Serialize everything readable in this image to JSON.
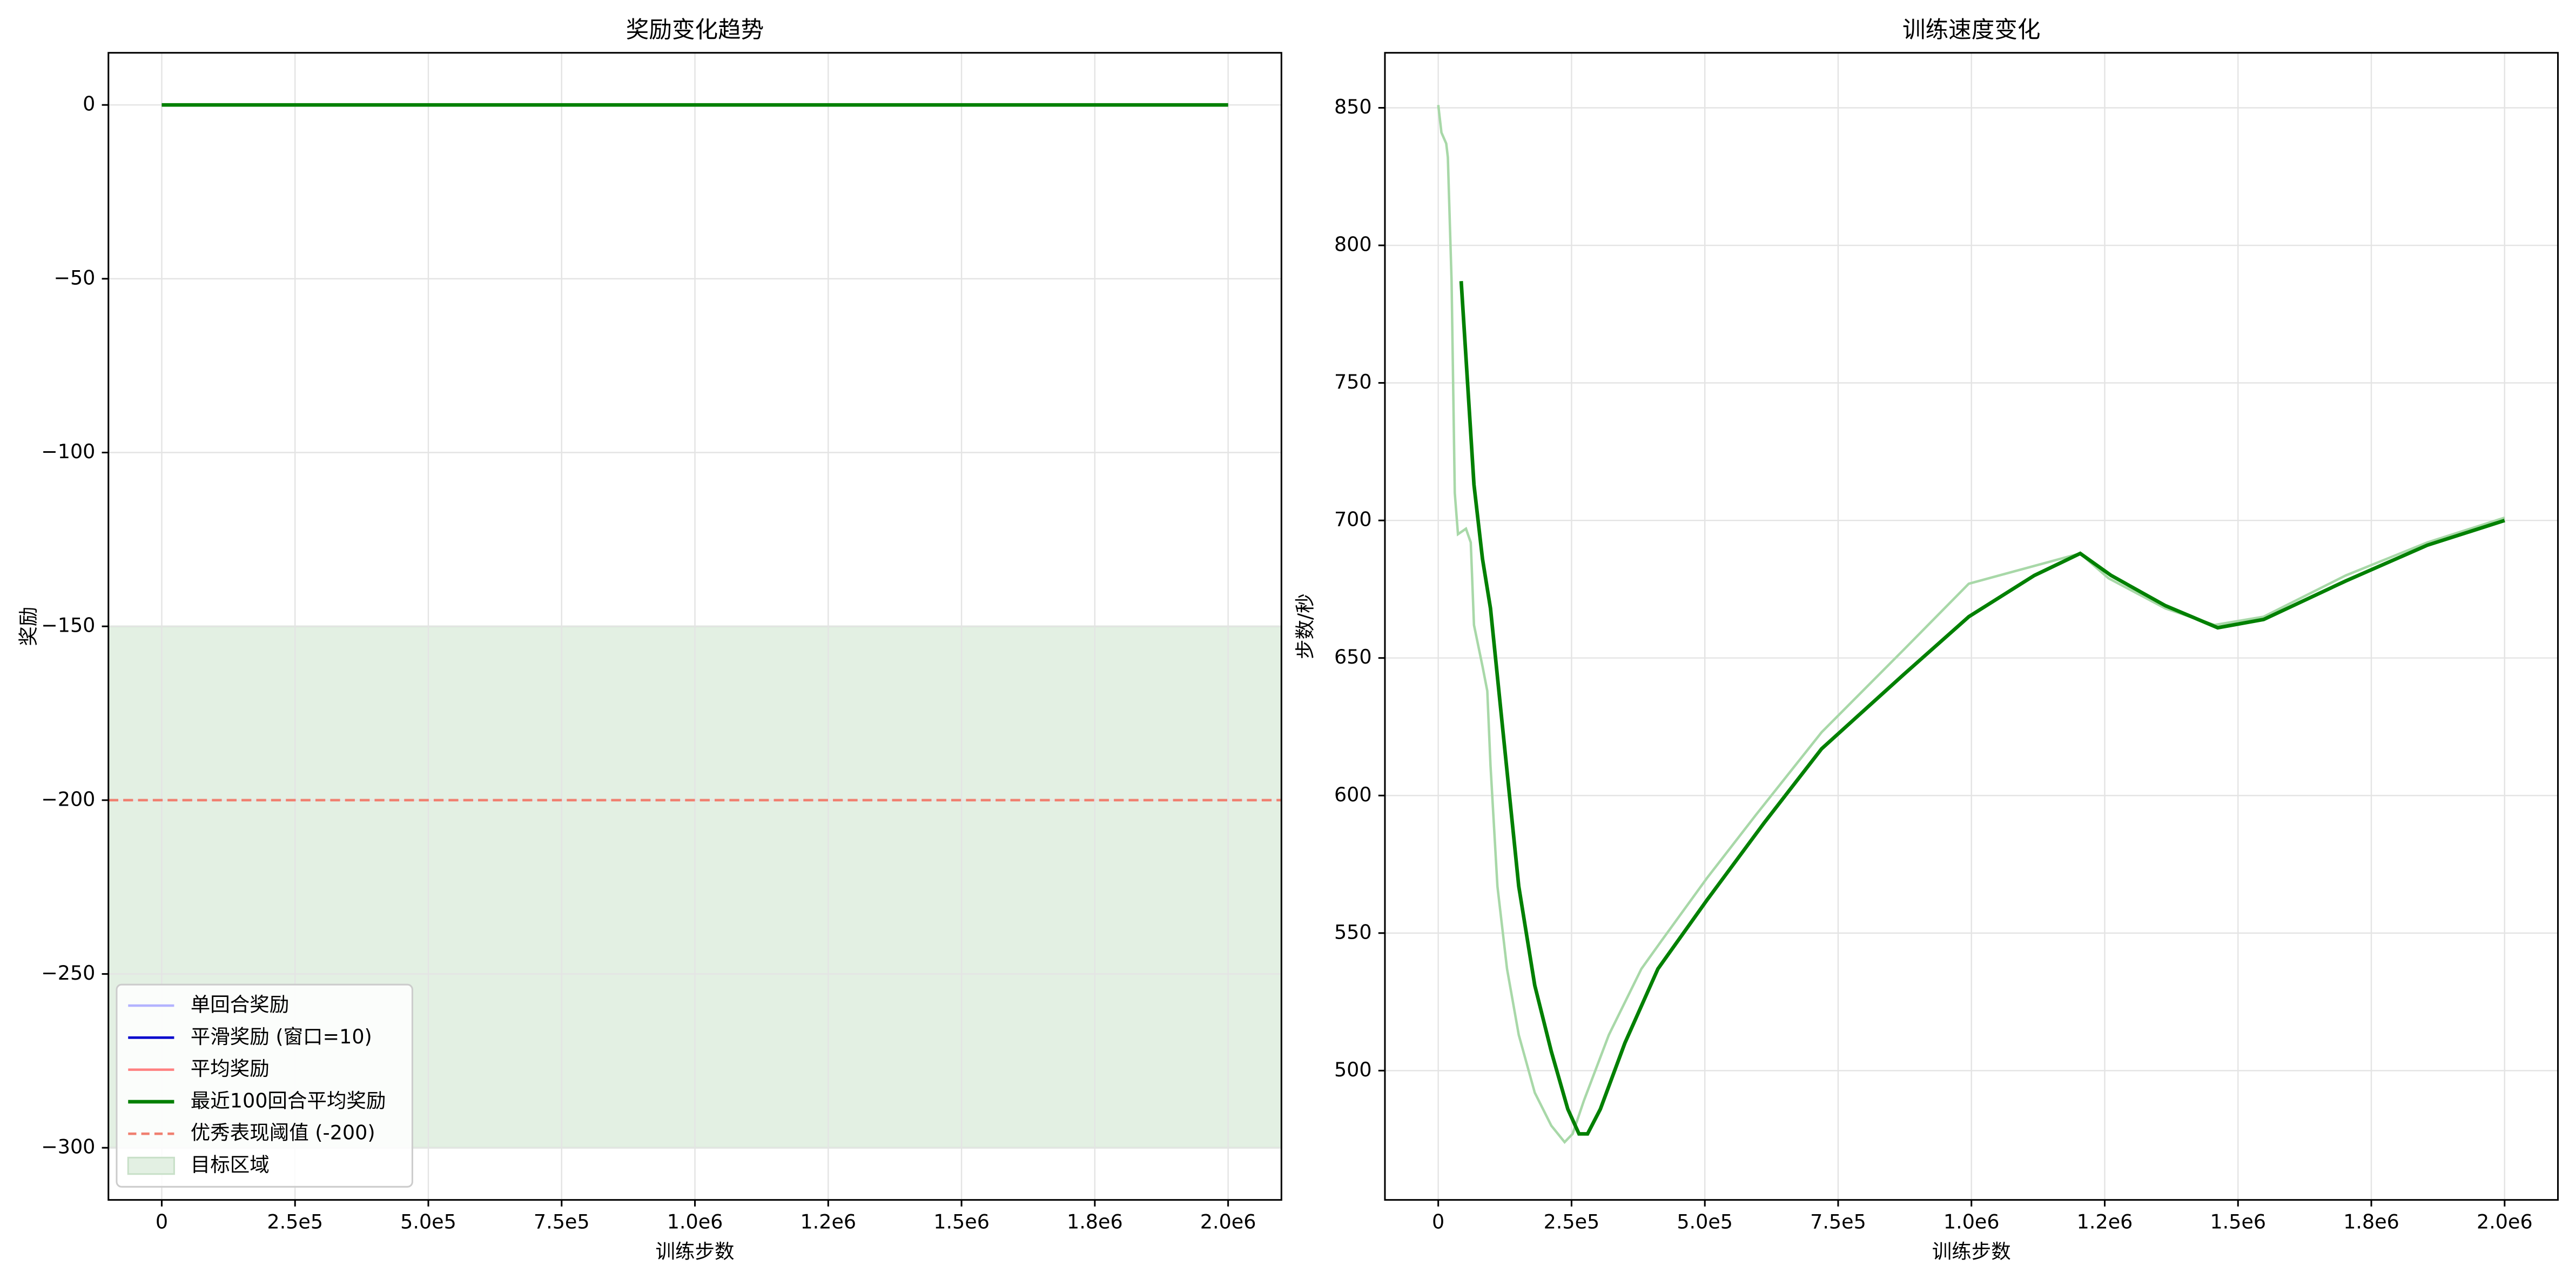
{
  "chart_data": [
    {
      "type": "line",
      "title": "奖励变化趋势",
      "xlabel": "训练步数",
      "ylabel": "奖励",
      "xlim": [
        -100000,
        2100000
      ],
      "ylim": [
        -315,
        15
      ],
      "grid": true,
      "legend": "lower left",
      "xticks": [
        0,
        {
          "value": 250000,
          "label": "2.5e5"
        },
        {
          "value": 500000,
          "label": "5.0e5"
        },
        {
          "value": 750000,
          "label": "7.5e5"
        },
        {
          "value": 1000000,
          "label": "1.0e6"
        },
        {
          "value": 1250000,
          "label": "1.2e6"
        },
        {
          "value": 1500000,
          "label": "1.5e6"
        },
        {
          "value": 1750000,
          "label": "1.8e6"
        },
        {
          "value": 2000000,
          "label": "2.0e6"
        }
      ],
      "yticks": [
        0,
        {
          "value": -50,
          "label": "−50"
        },
        {
          "value": -100,
          "label": "−100"
        },
        {
          "value": -150,
          "label": "−150"
        },
        {
          "value": -200,
          "label": "−200"
        },
        {
          "value": -250,
          "label": "−250"
        },
        {
          "value": -300,
          "label": "−300"
        }
      ],
      "x": [
        0,
        2000000
      ],
      "series": [
        {
          "name": "单回合奖励",
          "color": "#b3b3ff",
          "values": [
            0,
            0
          ]
        },
        {
          "name": "平滑奖励 (窗口=10)",
          "color": "#0000cc",
          "values": [
            0,
            0
          ]
        },
        {
          "name": "平均奖励",
          "color": "#ff8080",
          "values": [
            0,
            0
          ]
        },
        {
          "name": "最近100回合平均奖励",
          "color": "#008000",
          "values": [
            0,
            0
          ]
        }
      ],
      "threshold": {
        "name": "优秀表现阈值 (-200)",
        "value": -200,
        "color": "#f08070"
      },
      "target_region": {
        "name": "目标区域",
        "range": [
          -300,
          -150
        ],
        "color": "#e3f0e3"
      }
    },
    {
      "type": "line",
      "title": "训练速度变化",
      "xlabel": "训练步数",
      "ylabel": "步数/秒",
      "xlim": [
        -100000,
        2100000
      ],
      "ylim": [
        453,
        870
      ],
      "grid": true,
      "xticks": [
        0,
        {
          "value": 250000,
          "label": "2.5e5"
        },
        {
          "value": 500000,
          "label": "5.0e5"
        },
        {
          "value": 750000,
          "label": "7.5e5"
        },
        {
          "value": 1000000,
          "label": "1.0e6"
        },
        {
          "value": 1250000,
          "label": "1.2e6"
        },
        {
          "value": 1500000,
          "label": "1.5e6"
        },
        {
          "value": 1750000,
          "label": "1.8e6"
        },
        {
          "value": 2000000,
          "label": "2.0e6"
        }
      ],
      "yticks": [
        500,
        550,
        600,
        650,
        700,
        750,
        800,
        850
      ],
      "series": [
        {
          "color": "#a8d8a8",
          "x": [
            0,
            6000,
            15000,
            18000,
            25000,
            31000,
            37000,
            52000,
            61000,
            67000,
            83000,
            92000,
            98000,
            111000,
            129000,
            151000,
            181000,
            212000,
            237000,
            252000,
            273000,
            320000,
            381000,
            418000,
            504000,
            596000,
            719000,
            873000,
            995000,
            1204000,
            1257000,
            1364000,
            1456000,
            1548000,
            1702000,
            1855000,
            2000000
          ],
          "values": [
            851,
            841,
            837,
            832,
            787,
            710,
            695,
            697,
            692,
            662,
            647,
            638,
            611,
            567,
            537,
            513,
            492,
            480,
            474,
            477,
            489,
            513,
            537,
            547,
            570,
            593,
            623,
            653,
            677,
            688,
            679,
            668,
            662,
            665,
            680,
            692,
            701
          ]
        },
        {
          "color": "#008000",
          "x": [
            43000,
            67000,
            83000,
            98000,
            120000,
            151000,
            181000,
            212000,
            243000,
            264000,
            280000,
            304000,
            350000,
            412000,
            504000,
            611000,
            719000,
            873000,
            995000,
            1118000,
            1204000,
            1262000,
            1364000,
            1462000,
            1548000,
            1702000,
            1855000,
            2000000
          ],
          "values": [
            787,
            713,
            686,
            668,
            626,
            567,
            531,
            507,
            486,
            477,
            477,
            486,
            510,
            537,
            562,
            590,
            617,
            644,
            665,
            680,
            688,
            680,
            669,
            661,
            664,
            678,
            691,
            700
          ]
        }
      ]
    }
  ]
}
